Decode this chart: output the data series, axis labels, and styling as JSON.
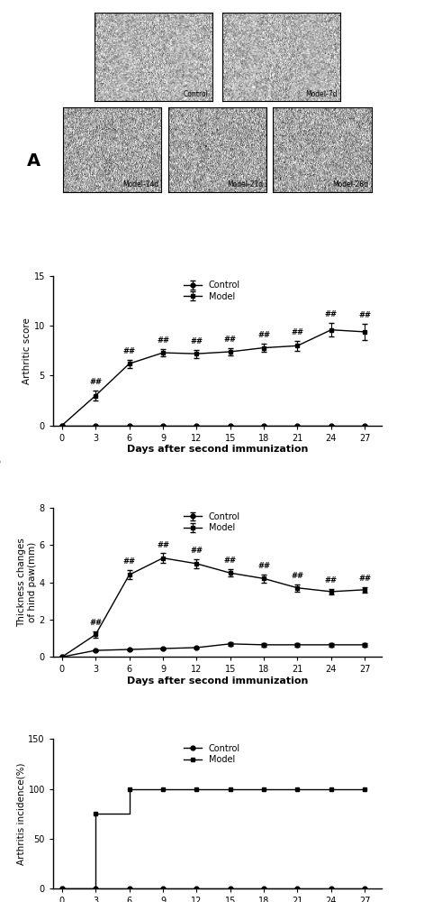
{
  "days": [
    0,
    3,
    6,
    9,
    12,
    15,
    18,
    21,
    24,
    27
  ],
  "panel_B": {
    "control_mean": [
      0,
      0,
      0,
      0,
      0,
      0,
      0,
      0,
      0,
      0
    ],
    "control_err": [
      0,
      0,
      0,
      0,
      0,
      0,
      0,
      0,
      0,
      0
    ],
    "model_mean": [
      0,
      3.0,
      6.2,
      7.3,
      7.2,
      7.4,
      7.8,
      8.0,
      9.6,
      9.4
    ],
    "model_err": [
      0,
      0.5,
      0.4,
      0.4,
      0.4,
      0.4,
      0.4,
      0.5,
      0.7,
      0.8
    ],
    "ylabel": "Arthritic score",
    "ylim": [
      0,
      15
    ],
    "yticks": [
      0,
      5,
      10,
      15
    ],
    "sig_days": [
      3,
      6,
      9,
      12,
      15,
      18,
      21,
      24,
      27
    ],
    "sig_label": "##"
  },
  "panel_C": {
    "control_mean": [
      0,
      0.35,
      0.4,
      0.45,
      0.5,
      0.7,
      0.65,
      0.65,
      0.65,
      0.65
    ],
    "control_err": [
      0,
      0.05,
      0.05,
      0.05,
      0.05,
      0.1,
      0.08,
      0.08,
      0.08,
      0.08
    ],
    "model_mean": [
      0,
      1.2,
      4.4,
      5.3,
      5.0,
      4.5,
      4.2,
      3.7,
      3.5,
      3.6
    ],
    "model_err": [
      0,
      0.15,
      0.25,
      0.25,
      0.25,
      0.2,
      0.2,
      0.2,
      0.15,
      0.15
    ],
    "ylabel": "Thickness changes\nof hind paw(mm)",
    "ylim": [
      0,
      8
    ],
    "yticks": [
      0,
      2,
      4,
      6,
      8
    ],
    "sig_days": [
      3,
      6,
      9,
      12,
      15,
      18,
      21,
      24,
      27
    ],
    "sig_label": "##"
  },
  "panel_D": {
    "control_mean": [
      0,
      0,
      0,
      0,
      0,
      0,
      0,
      0,
      0,
      0
    ],
    "model_mean": [
      0,
      75,
      100,
      100,
      100,
      100,
      100,
      100,
      100,
      100
    ],
    "ylabel": "Arthritis incidence(%)",
    "ylim": [
      0,
      150
    ],
    "yticks": [
      0,
      50,
      100,
      150
    ]
  },
  "xlabel": "Days after second immunization",
  "legend_control": "Control",
  "legend_model": "Model",
  "color": "#000000",
  "photo_panel_label": "A",
  "photo_labels_row1": [
    "Control",
    "Model-7d"
  ],
  "photo_labels_row2": [
    "Model-14d",
    "Model-21d",
    "Model-28d"
  ]
}
